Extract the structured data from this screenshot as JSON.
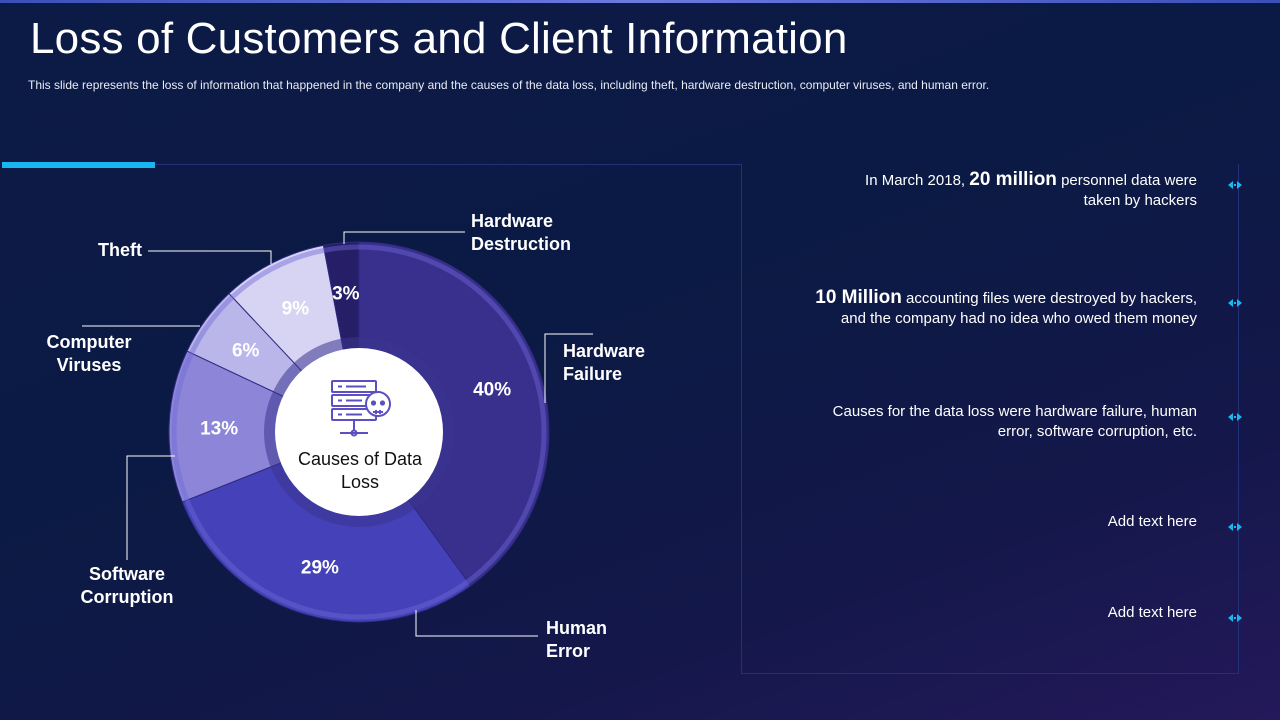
{
  "slide": {
    "title": "Loss of Customers and Client Information",
    "subtitle": "This slide represents the loss of information that happened in the company and the causes of the data loss, including theft, hardware destruction, computer viruses, and human error."
  },
  "chart_data": {
    "type": "pie",
    "title": "",
    "center_label": "Causes of Data Loss",
    "categories": [
      "Hardware Failure",
      "Human Error",
      "Software Corruption",
      "Computer Viruses",
      "Theft",
      "Hardware Destruction"
    ],
    "values": [
      40,
      29,
      13,
      6,
      9,
      3
    ],
    "value_labels": [
      "40%",
      "29%",
      "13%",
      "6%",
      "9%",
      "3%"
    ],
    "colors": [
      "#392f8c",
      "#4541b8",
      "#8d85d8",
      "#bbb6ea",
      "#d7d4f3",
      "#261e66"
    ],
    "label_lines": [
      [
        "Hardware",
        "Failure"
      ],
      [
        "Human",
        "Error"
      ],
      [
        "Software",
        "Corruption"
      ],
      [
        "Computer",
        "Viruses"
      ],
      [
        "Theft"
      ],
      [
        "Hardware",
        "Destruction"
      ]
    ]
  },
  "info_items": [
    {
      "pre": "In March 2018, ",
      "big": "20 million",
      "post": " personnel data were",
      "line2": "taken by hackers"
    },
    {
      "pre": "",
      "big": "10 Million",
      "post": " accounting files were destroyed by hackers,",
      "line2": "and the company had no idea who owed them money"
    },
    {
      "pre": "",
      "big": "",
      "post": "Causes for the data loss were hardware failure, human",
      "line2": "error, software corruption, etc."
    },
    {
      "pre": "",
      "big": "",
      "post": "Add text here",
      "line2": ""
    },
    {
      "pre": "",
      "big": "",
      "post": "Add text here",
      "line2": ""
    }
  ],
  "icons": {
    "center": "server-skull-icon",
    "bullet": "double-arrow-icon"
  },
  "accent_color": "#19b6f0"
}
